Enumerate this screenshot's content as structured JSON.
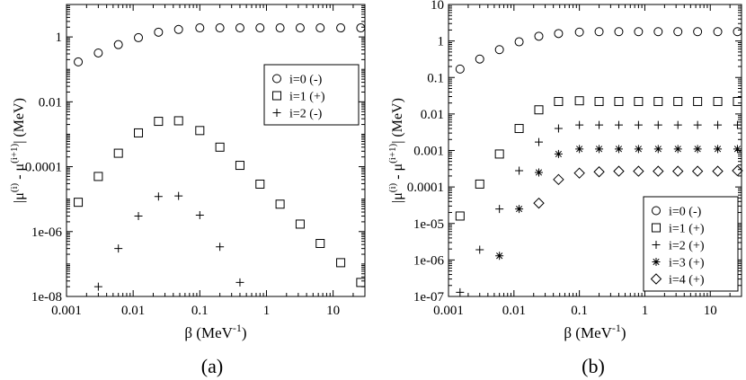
{
  "chart_data": [
    {
      "type": "scatter",
      "panel_label": "(a)",
      "xlabel_main": "β",
      "xlabel_unit": "(MeV",
      "xlabel_exp": "-1",
      "xlabel_close": ")",
      "ylabel": {
        "pre": "|μ",
        "sup1": "(i)",
        "mid": " - μ",
        "sup2": "(i+1)",
        "post": "| (MeV)"
      },
      "xscale": "log",
      "yscale": "log",
      "xlim": [
        0.001,
        30
      ],
      "ylim": [
        1e-08,
        10
      ],
      "x_ticks": [
        0.001,
        0.01,
        0.1,
        1,
        10
      ],
      "x_tick_labels": [
        "0.001",
        "0.01",
        "0.1",
        "1",
        "10"
      ],
      "y_ticks": [
        1e-08,
        1e-06,
        0.0001,
        0.01,
        1
      ],
      "y_tick_labels": [
        "1e-08",
        "1e-06",
        "0.0001",
        "0.01",
        "1"
      ],
      "legend_position": "top-right",
      "series": [
        {
          "name": "i=0 (-)",
          "marker": "circle",
          "points": [
            [
              0.0015,
              0.17
            ],
            [
              0.003,
              0.32
            ],
            [
              0.006,
              0.58
            ],
            [
              0.012,
              0.95
            ],
            [
              0.024,
              1.4
            ],
            [
              0.048,
              1.7
            ],
            [
              0.1,
              1.9
            ],
            [
              0.2,
              1.9
            ],
            [
              0.4,
              1.9
            ],
            [
              0.8,
              1.9
            ],
            [
              1.6,
              1.9
            ],
            [
              3.2,
              1.9
            ],
            [
              6.4,
              1.9
            ],
            [
              13,
              1.9
            ],
            [
              26,
              1.9
            ]
          ]
        },
        {
          "name": "i=1 (+)",
          "marker": "square",
          "points": [
            [
              0.0015,
              8e-06
            ],
            [
              0.003,
              5e-05
            ],
            [
              0.006,
              0.00026
            ],
            [
              0.012,
              0.0011
            ],
            [
              0.024,
              0.0025
            ],
            [
              0.048,
              0.0026
            ],
            [
              0.1,
              0.0013
            ],
            [
              0.2,
              0.0004
            ],
            [
              0.4,
              0.00011
            ],
            [
              0.8,
              2.9e-05
            ],
            [
              1.6,
              7e-06
            ],
            [
              3.2,
              1.7e-06
            ],
            [
              6.4,
              4.3e-07
            ],
            [
              13,
              1.1e-07
            ],
            [
              26,
              2.7e-08
            ]
          ]
        },
        {
          "name": "i=2 (-)",
          "marker": "plus",
          "points": [
            [
              0.003,
              2e-08
            ],
            [
              0.006,
              3e-07
            ],
            [
              0.012,
              3e-06
            ],
            [
              0.024,
              1.2e-05
            ],
            [
              0.048,
              1.25e-05
            ],
            [
              0.1,
              3.2e-06
            ],
            [
              0.2,
              3.4e-07
            ],
            [
              0.4,
              2.7e-08
            ]
          ]
        }
      ]
    },
    {
      "type": "scatter",
      "panel_label": "(b)",
      "xlabel_main": "β",
      "xlabel_unit": "(MeV",
      "xlabel_exp": "-1",
      "xlabel_close": ")",
      "ylabel": {
        "pre": "|μ",
        "sup1": "(i)",
        "mid": " - μ",
        "sup2": "(i+1)",
        "post": "| (MeV)"
      },
      "xscale": "log",
      "yscale": "log",
      "xlim": [
        0.001,
        30
      ],
      "ylim": [
        1e-07,
        10
      ],
      "x_ticks": [
        0.001,
        0.01,
        0.1,
        1,
        10
      ],
      "x_tick_labels": [
        "0.001",
        "0.01",
        "0.1",
        "1",
        "10"
      ],
      "y_ticks": [
        1e-07,
        1e-06,
        1e-05,
        0.0001,
        0.001,
        0.01,
        0.1,
        1,
        10
      ],
      "y_tick_labels": [
        "1e-07",
        "1e-06",
        "1e-05",
        "0.0001",
        "0.001",
        "0.01",
        "0.1",
        "1",
        "10"
      ],
      "legend_position": "bottom-right",
      "series": [
        {
          "name": "i=0 (-)",
          "marker": "circle",
          "points": [
            [
              0.0015,
              0.17
            ],
            [
              0.003,
              0.32
            ],
            [
              0.006,
              0.58
            ],
            [
              0.012,
              0.95
            ],
            [
              0.024,
              1.35
            ],
            [
              0.048,
              1.6
            ],
            [
              0.1,
              1.75
            ],
            [
              0.2,
              1.8
            ],
            [
              0.4,
              1.8
            ],
            [
              0.8,
              1.8
            ],
            [
              1.6,
              1.8
            ],
            [
              3.2,
              1.8
            ],
            [
              6.4,
              1.8
            ],
            [
              13,
              1.8
            ],
            [
              26,
              1.8
            ]
          ]
        },
        {
          "name": "i=1 (+)",
          "marker": "square",
          "points": [
            [
              0.0015,
              1.6e-05
            ],
            [
              0.003,
              0.00012
            ],
            [
              0.006,
              0.0008
            ],
            [
              0.012,
              0.004
            ],
            [
              0.024,
              0.013
            ],
            [
              0.048,
              0.022
            ],
            [
              0.1,
              0.023
            ],
            [
              0.2,
              0.022
            ],
            [
              0.4,
              0.022
            ],
            [
              0.8,
              0.022
            ],
            [
              1.6,
              0.022
            ],
            [
              3.2,
              0.022
            ],
            [
              6.4,
              0.022
            ],
            [
              13,
              0.022
            ],
            [
              26,
              0.022
            ]
          ]
        },
        {
          "name": "i=2 (+)",
          "marker": "plus",
          "points": [
            [
              0.0015,
              1.3e-07
            ],
            [
              0.003,
              1.9e-06
            ],
            [
              0.006,
              2.5e-05
            ],
            [
              0.012,
              0.00028
            ],
            [
              0.024,
              0.0017
            ],
            [
              0.048,
              0.004
            ],
            [
              0.1,
              0.005
            ],
            [
              0.2,
              0.005
            ],
            [
              0.4,
              0.005
            ],
            [
              0.8,
              0.005
            ],
            [
              1.6,
              0.005
            ],
            [
              3.2,
              0.005
            ],
            [
              6.4,
              0.005
            ],
            [
              13,
              0.005
            ],
            [
              26,
              0.005
            ]
          ]
        },
        {
          "name": "i=3 (+)",
          "marker": "star",
          "points": [
            [
              0.006,
              1.3e-06
            ],
            [
              0.012,
              2.5e-05
            ],
            [
              0.024,
              0.00025
            ],
            [
              0.048,
              0.0008
            ],
            [
              0.1,
              0.0011
            ],
            [
              0.2,
              0.0011
            ],
            [
              0.4,
              0.0011
            ],
            [
              0.8,
              0.0011
            ],
            [
              1.6,
              0.0011
            ],
            [
              3.2,
              0.0011
            ],
            [
              6.4,
              0.0011
            ],
            [
              13,
              0.0011
            ],
            [
              26,
              0.0011
            ]
          ]
        },
        {
          "name": "i=4 (+)",
          "marker": "diamond",
          "points": [
            [
              0.024,
              3.6e-05
            ],
            [
              0.048,
              0.00016
            ],
            [
              0.1,
              0.00024
            ],
            [
              0.2,
              0.00026
            ],
            [
              0.4,
              0.00027
            ],
            [
              0.8,
              0.00027
            ],
            [
              1.6,
              0.00027
            ],
            [
              3.2,
              0.00027
            ],
            [
              6.4,
              0.00027
            ],
            [
              13,
              0.00027
            ],
            [
              26,
              0.00028
            ]
          ]
        }
      ]
    }
  ]
}
